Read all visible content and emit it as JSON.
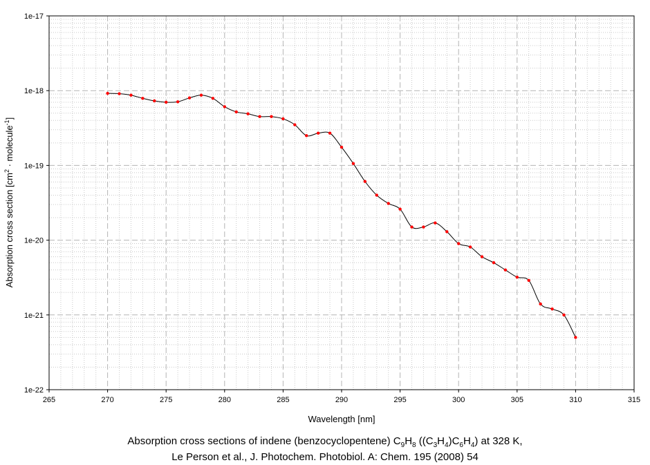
{
  "chart_data": {
    "type": "line",
    "xlabel": "Wavelength [nm]",
    "ylabel_parts": [
      "Absorption cross section [cm",
      "2",
      " · molecule",
      "-1",
      "]"
    ],
    "xlim": [
      265,
      315
    ],
    "ylim": [
      1e-22,
      1e-17
    ],
    "yscale": "log",
    "x_ticks": [
      "265",
      "270",
      "275",
      "280",
      "285",
      "290",
      "295",
      "300",
      "305",
      "310",
      "315"
    ],
    "y_ticks": [
      "1e-22",
      "1e-21",
      "1e-20",
      "1e-19",
      "1e-18",
      "1e-17"
    ],
    "grid": true,
    "line_color": "#000000",
    "marker_color": "#ff0000",
    "series": [
      {
        "x": [
          270,
          271,
          272,
          273,
          274,
          275,
          276,
          277,
          278,
          279,
          280,
          281,
          282,
          283,
          284,
          285,
          286,
          287,
          288,
          289,
          290,
          291,
          292,
          293,
          294,
          295,
          296,
          297,
          298,
          299,
          300,
          301,
          302,
          303,
          304,
          305,
          306,
          307,
          308,
          309,
          310
        ],
        "y": [
          9.2e-19,
          9.1e-19,
          8.7e-19,
          7.9e-19,
          7.3e-19,
          7e-19,
          7.1e-19,
          8e-19,
          8.7e-19,
          7.9e-19,
          6.1e-19,
          5.2e-19,
          4.9e-19,
          4.5e-19,
          4.5e-19,
          4.2e-19,
          3.5e-19,
          2.5e-19,
          2.7e-19,
          2.7e-19,
          1.75e-19,
          1.06e-19,
          6.1e-20,
          4e-20,
          3.1e-20,
          2.6e-20,
          1.5e-20,
          1.5e-20,
          1.7e-20,
          1.3e-20,
          9e-21,
          8.1e-21,
          6e-21,
          5e-21,
          4e-21,
          3.2e-21,
          2.9e-21,
          1.4e-21,
          1.2e-21,
          1e-21,
          5e-22
        ]
      }
    ]
  },
  "caption": {
    "line1": {
      "prefix": "Absorption cross sections of indene (benzocyclopentene) C",
      "s1": "9",
      "t1": "H",
      "s2": "8",
      "t2": " ((C",
      "s3": "3",
      "t3": "H",
      "s4": "4",
      "t4": ")C",
      "s5": "6",
      "t5": "H",
      "s6": "4",
      "t6": ") at 328 K,"
    },
    "line2": "Le Person et al., J. Photochem. Photobiol. A: Chem. 195 (2008) 54"
  }
}
